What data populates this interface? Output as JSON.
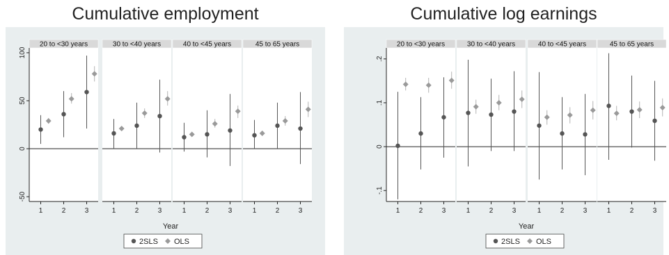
{
  "figures": [
    {
      "title": "Cumulative employment"
    },
    {
      "title": "Cumulative log earnings"
    }
  ],
  "colors": {
    "twosls": "#555555",
    "ols": "#9a9a9a",
    "panel_bg": "#ffffff",
    "outer_bg": "#e9eeef",
    "strip_bg": "#d9d9d9"
  },
  "chart_data": [
    {
      "type": "scatter",
      "title": "Cumulative employment",
      "xlabel": "Year",
      "ylabel": "",
      "ylim": [
        -55,
        105
      ],
      "yticks": [
        -50,
        0,
        50,
        100
      ],
      "ytick_labels": [
        "-50",
        "0",
        "50",
        "100"
      ],
      "xticks": [
        1,
        2,
        3
      ],
      "xtick_labels": [
        "1",
        "2",
        "3"
      ],
      "legend": {
        "position": "bottom",
        "entries": [
          "2SLS",
          "OLS"
        ]
      },
      "panels": [
        {
          "label": "20 to <30 years",
          "series": [
            {
              "name": "2SLS",
              "points": [
                {
                  "x": 1,
                  "y": 20,
                  "lo": 5,
                  "hi": 35
                },
                {
                  "x": 2,
                  "y": 36,
                  "lo": 12,
                  "hi": 60
                },
                {
                  "x": 3,
                  "y": 59,
                  "lo": 21,
                  "hi": 97
                }
              ]
            },
            {
              "name": "OLS",
              "points": [
                {
                  "x": 1,
                  "y": 29,
                  "lo": 26,
                  "hi": 32
                },
                {
                  "x": 2,
                  "y": 52,
                  "lo": 47,
                  "hi": 58
                },
                {
                  "x": 3,
                  "y": 78,
                  "lo": 70,
                  "hi": 86
                }
              ]
            }
          ]
        },
        {
          "label": "30 to <40 years",
          "series": [
            {
              "name": "2SLS",
              "points": [
                {
                  "x": 1,
                  "y": 16,
                  "lo": 0,
                  "hi": 31
                },
                {
                  "x": 2,
                  "y": 24,
                  "lo": 0,
                  "hi": 48
                },
                {
                  "x": 3,
                  "y": 34,
                  "lo": -4,
                  "hi": 72
                }
              ]
            },
            {
              "name": "OLS",
              "points": [
                {
                  "x": 1,
                  "y": 21,
                  "lo": 19,
                  "hi": 23
                },
                {
                  "x": 2,
                  "y": 37,
                  "lo": 32,
                  "hi": 42
                },
                {
                  "x": 3,
                  "y": 52,
                  "lo": 45,
                  "hi": 60
                }
              ]
            }
          ]
        },
        {
          "label": "40 to <45 years",
          "series": [
            {
              "name": "2SLS",
              "points": [
                {
                  "x": 1,
                  "y": 12,
                  "lo": -3,
                  "hi": 27
                },
                {
                  "x": 2,
                  "y": 15,
                  "lo": -9,
                  "hi": 40
                },
                {
                  "x": 3,
                  "y": 19,
                  "lo": -18,
                  "hi": 57
                }
              ]
            },
            {
              "name": "OLS",
              "points": [
                {
                  "x": 1,
                  "y": 15,
                  "lo": 13,
                  "hi": 17
                },
                {
                  "x": 2,
                  "y": 26,
                  "lo": 22,
                  "hi": 31
                },
                {
                  "x": 3,
                  "y": 39,
                  "lo": 32,
                  "hi": 45
                }
              ]
            }
          ]
        },
        {
          "label": "45 to 65 years",
          "series": [
            {
              "name": "2SLS",
              "points": [
                {
                  "x": 1,
                  "y": 14,
                  "lo": 0,
                  "hi": 30
                },
                {
                  "x": 2,
                  "y": 24,
                  "lo": 0,
                  "hi": 48
                },
                {
                  "x": 3,
                  "y": 21,
                  "lo": -16,
                  "hi": 59
                }
              ]
            },
            {
              "name": "OLS",
              "points": [
                {
                  "x": 1,
                  "y": 16,
                  "lo": 14,
                  "hi": 18
                },
                {
                  "x": 2,
                  "y": 29,
                  "lo": 24,
                  "hi": 34
                },
                {
                  "x": 3,
                  "y": 41,
                  "lo": 33,
                  "hi": 49
                }
              ]
            }
          ]
        }
      ]
    },
    {
      "type": "scatter",
      "title": "Cumulative log earnings",
      "xlabel": "Year",
      "ylabel": "",
      "ylim": [
        -0.125,
        0.225
      ],
      "yticks": [
        -0.1,
        0,
        0.1,
        0.2
      ],
      "ytick_labels": [
        "-.1",
        "0",
        ".1",
        ".2"
      ],
      "xticks": [
        1,
        2,
        3
      ],
      "xtick_labels": [
        "1",
        "2",
        "3"
      ],
      "legend": {
        "position": "bottom",
        "entries": [
          "2SLS",
          "OLS"
        ]
      },
      "panels": [
        {
          "label": "20 to <30 years",
          "series": [
            {
              "name": "2SLS",
              "points": [
                {
                  "x": 1,
                  "y": 0.002,
                  "lo": -0.12,
                  "hi": 0.125
                },
                {
                  "x": 2,
                  "y": 0.03,
                  "lo": -0.052,
                  "hi": 0.113
                },
                {
                  "x": 3,
                  "y": 0.067,
                  "lo": -0.025,
                  "hi": 0.158
                }
              ]
            },
            {
              "name": "OLS",
              "points": [
                {
                  "x": 1,
                  "y": 0.142,
                  "lo": 0.128,
                  "hi": 0.157
                },
                {
                  "x": 2,
                  "y": 0.14,
                  "lo": 0.123,
                  "hi": 0.157
                },
                {
                  "x": 3,
                  "y": 0.151,
                  "lo": 0.132,
                  "hi": 0.171
                }
              ]
            }
          ]
        },
        {
          "label": "30 to <40 years",
          "series": [
            {
              "name": "2SLS",
              "points": [
                {
                  "x": 1,
                  "y": 0.077,
                  "lo": -0.045,
                  "hi": 0.198
                },
                {
                  "x": 2,
                  "y": 0.073,
                  "lo": -0.01,
                  "hi": 0.155
                },
                {
                  "x": 3,
                  "y": 0.08,
                  "lo": -0.01,
                  "hi": 0.172
                }
              ]
            },
            {
              "name": "OLS",
              "points": [
                {
                  "x": 1,
                  "y": 0.091,
                  "lo": 0.075,
                  "hi": 0.107
                },
                {
                  "x": 2,
                  "y": 0.1,
                  "lo": 0.083,
                  "hi": 0.118
                },
                {
                  "x": 3,
                  "y": 0.108,
                  "lo": 0.088,
                  "hi": 0.128
                }
              ]
            }
          ]
        },
        {
          "label": "40 to <45 years",
          "series": [
            {
              "name": "2SLS",
              "points": [
                {
                  "x": 1,
                  "y": 0.048,
                  "lo": -0.075,
                  "hi": 0.17
                },
                {
                  "x": 2,
                  "y": 0.03,
                  "lo": -0.052,
                  "hi": 0.113
                },
                {
                  "x": 3,
                  "y": 0.028,
                  "lo": -0.065,
                  "hi": 0.12
                }
              ]
            },
            {
              "name": "OLS",
              "points": [
                {
                  "x": 1,
                  "y": 0.067,
                  "lo": 0.05,
                  "hi": 0.083
                },
                {
                  "x": 2,
                  "y": 0.072,
                  "lo": 0.053,
                  "hi": 0.09
                },
                {
                  "x": 3,
                  "y": 0.083,
                  "lo": 0.062,
                  "hi": 0.104
                }
              ]
            }
          ]
        },
        {
          "label": "45 to 65 years",
          "series": [
            {
              "name": "2SLS",
              "points": [
                {
                  "x": 1,
                  "y": 0.093,
                  "lo": -0.03,
                  "hi": 0.213
                },
                {
                  "x": 2,
                  "y": 0.08,
                  "lo": -0.002,
                  "hi": 0.162
                },
                {
                  "x": 3,
                  "y": 0.059,
                  "lo": -0.032,
                  "hi": 0.15
                }
              ]
            },
            {
              "name": "OLS",
              "points": [
                {
                  "x": 1,
                  "y": 0.076,
                  "lo": 0.06,
                  "hi": 0.093
                },
                {
                  "x": 2,
                  "y": 0.084,
                  "lo": 0.065,
                  "hi": 0.103
                },
                {
                  "x": 3,
                  "y": 0.089,
                  "lo": 0.069,
                  "hi": 0.11
                }
              ]
            }
          ]
        }
      ]
    }
  ]
}
